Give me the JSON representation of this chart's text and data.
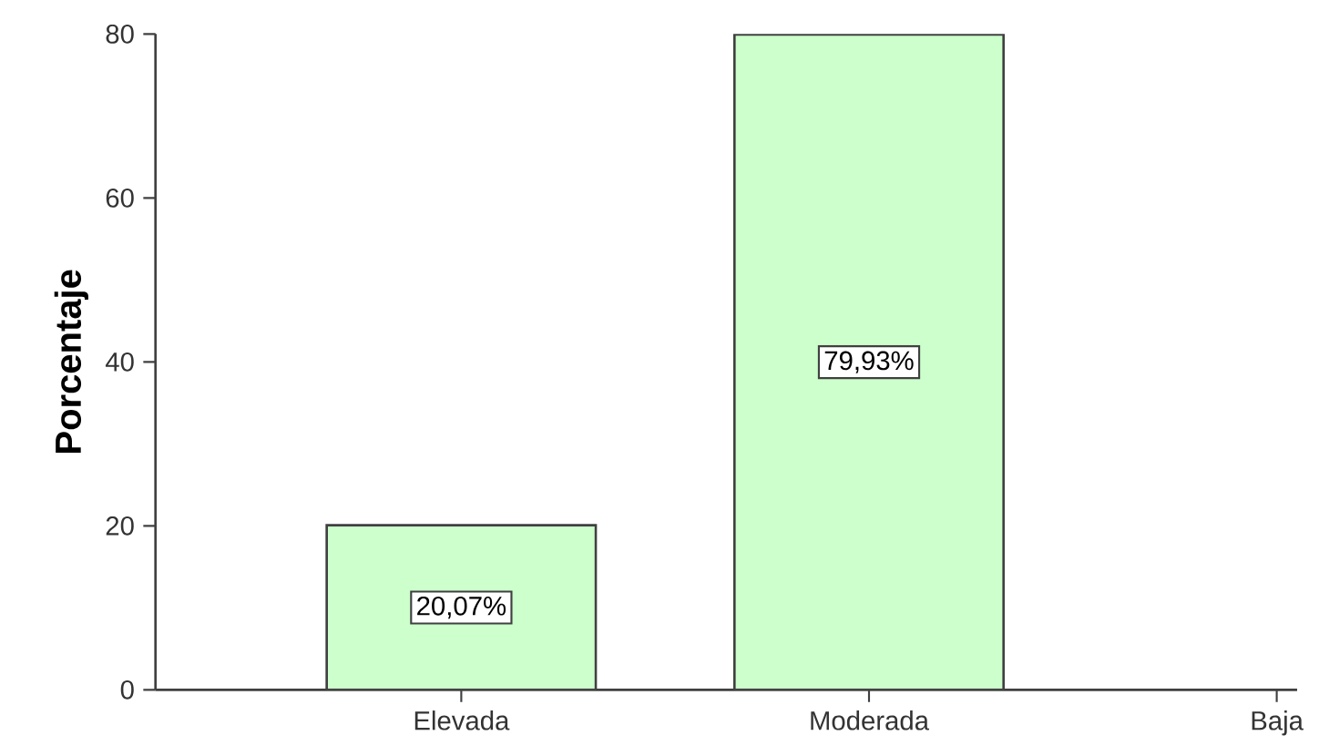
{
  "chart_data": {
    "type": "bar",
    "ylabel": "Porcentaje",
    "categories": [
      "Elevada",
      "Moderada",
      "Baja"
    ],
    "values": [
      20.07,
      79.93,
      null
    ],
    "value_labels": [
      "20,07%",
      "79,93%",
      null
    ],
    "color": "#ccffcc",
    "ylim": [
      0,
      80
    ],
    "yticks": [
      0,
      20,
      40,
      60,
      80
    ],
    "grid": false
  }
}
